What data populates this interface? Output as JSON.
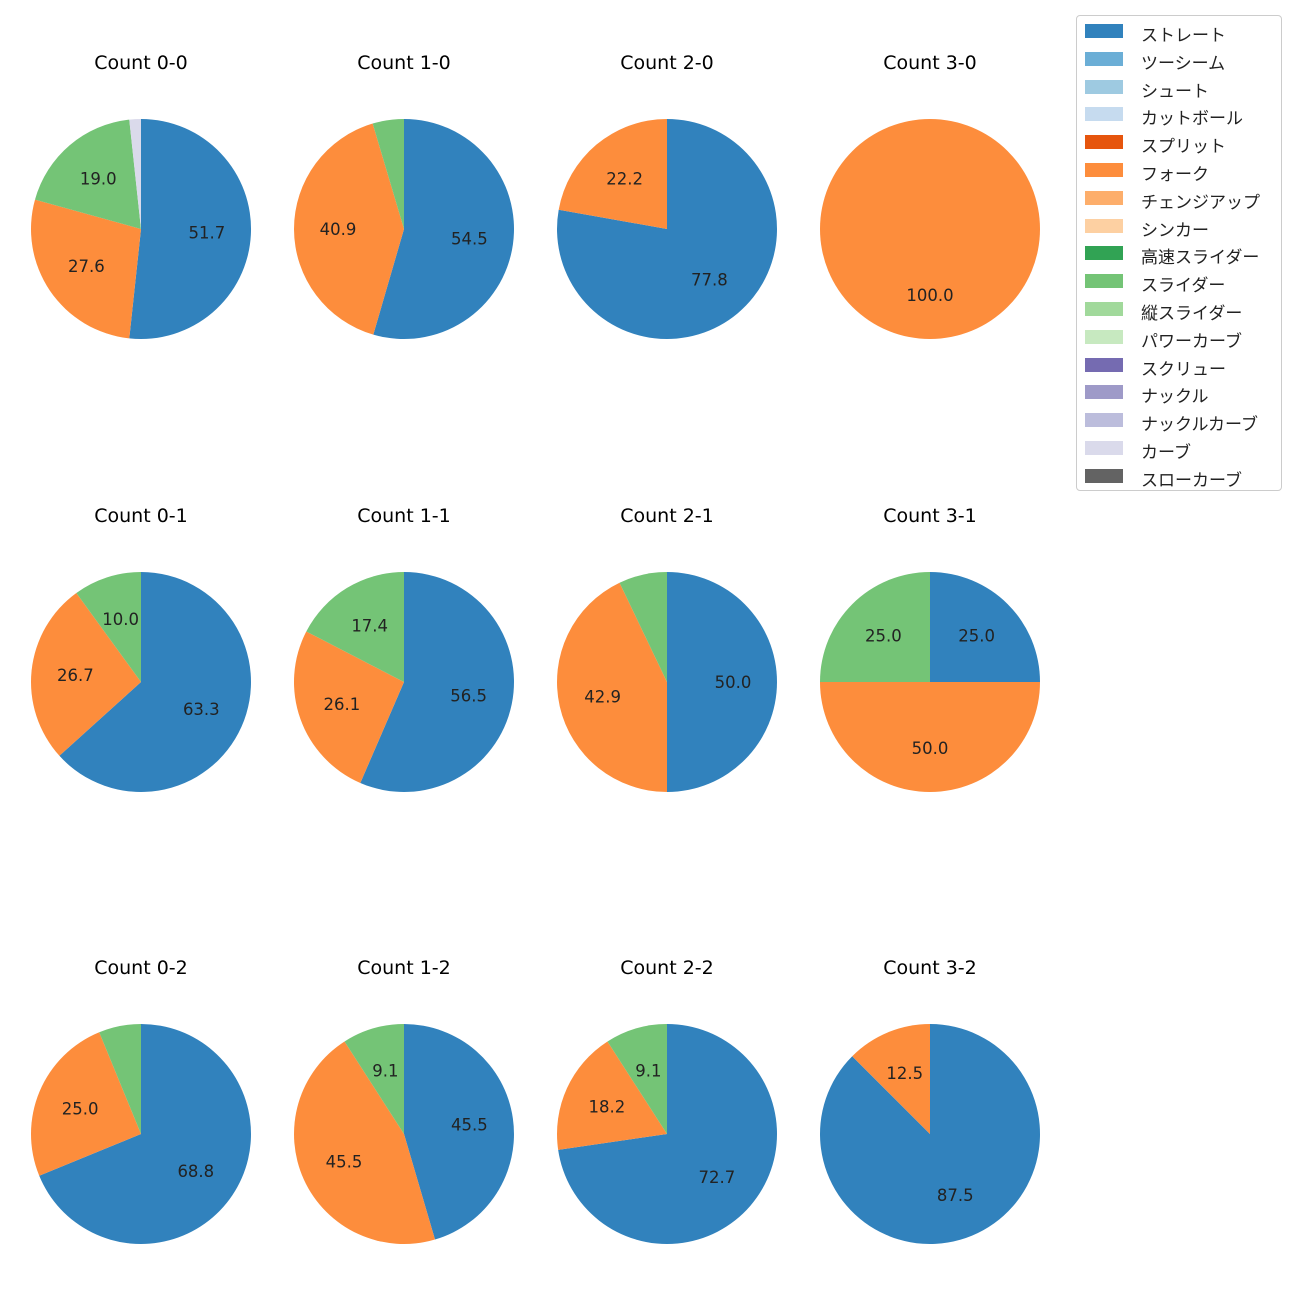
{
  "chart_data": {
    "type": "pie",
    "legend_position": "top-right",
    "legend": [
      {
        "label": "ストレート",
        "color": "#3182bd"
      },
      {
        "label": "ツーシーム",
        "color": "#6baed6"
      },
      {
        "label": "シュート",
        "color": "#9ecae1"
      },
      {
        "label": "カットボール",
        "color": "#c6dbef"
      },
      {
        "label": "スプリット",
        "color": "#e6550d"
      },
      {
        "label": "フォーク",
        "color": "#fd8d3c"
      },
      {
        "label": "チェンジアップ",
        "color": "#fdae6b"
      },
      {
        "label": "シンカー",
        "color": "#fdd0a2"
      },
      {
        "label": "高速スライダー",
        "color": "#31a354"
      },
      {
        "label": "スライダー",
        "color": "#74c476"
      },
      {
        "label": "縦スライダー",
        "color": "#a1d99b"
      },
      {
        "label": "パワーカーブ",
        "color": "#c7e9c0"
      },
      {
        "label": "スクリュー",
        "color": "#756bb1"
      },
      {
        "label": "ナックル",
        "color": "#9e9ac8"
      },
      {
        "label": "ナックルカーブ",
        "color": "#bcbddc"
      },
      {
        "label": "カーブ",
        "color": "#dadaeb"
      },
      {
        "label": "スローカーブ",
        "color": "#636363"
      }
    ],
    "pies": [
      {
        "title": "Count 0-0",
        "slices": [
          {
            "pitch": "ストレート",
            "value": 51.7,
            "label": "51.7"
          },
          {
            "pitch": "フォーク",
            "value": 27.6,
            "label": "27.6"
          },
          {
            "pitch": "スライダー",
            "value": 19.0,
            "label": "19.0"
          },
          {
            "pitch": "カーブ",
            "value": 1.7,
            "label": ""
          }
        ]
      },
      {
        "title": "Count 1-0",
        "slices": [
          {
            "pitch": "ストレート",
            "value": 54.5,
            "label": "54.5"
          },
          {
            "pitch": "フォーク",
            "value": 40.9,
            "label": "40.9"
          },
          {
            "pitch": "スライダー",
            "value": 4.6,
            "label": ""
          }
        ]
      },
      {
        "title": "Count 2-0",
        "slices": [
          {
            "pitch": "ストレート",
            "value": 77.8,
            "label": "77.8"
          },
          {
            "pitch": "フォーク",
            "value": 22.2,
            "label": "22.2"
          }
        ]
      },
      {
        "title": "Count 3-0",
        "slices": [
          {
            "pitch": "フォーク",
            "value": 100.0,
            "label": "100.0"
          }
        ]
      },
      {
        "title": "Count 0-1",
        "slices": [
          {
            "pitch": "ストレート",
            "value": 63.3,
            "label": "63.3"
          },
          {
            "pitch": "フォーク",
            "value": 26.7,
            "label": "26.7"
          },
          {
            "pitch": "スライダー",
            "value": 10.0,
            "label": "10.0"
          }
        ]
      },
      {
        "title": "Count 1-1",
        "slices": [
          {
            "pitch": "ストレート",
            "value": 56.5,
            "label": "56.5"
          },
          {
            "pitch": "フォーク",
            "value": 26.1,
            "label": "26.1"
          },
          {
            "pitch": "スライダー",
            "value": 17.4,
            "label": "17.4"
          }
        ]
      },
      {
        "title": "Count 2-1",
        "slices": [
          {
            "pitch": "ストレート",
            "value": 50.0,
            "label": "50.0"
          },
          {
            "pitch": "フォーク",
            "value": 42.9,
            "label": "42.9"
          },
          {
            "pitch": "スライダー",
            "value": 7.1,
            "label": ""
          }
        ]
      },
      {
        "title": "Count 3-1",
        "slices": [
          {
            "pitch": "ストレート",
            "value": 25.0,
            "label": "25.0"
          },
          {
            "pitch": "フォーク",
            "value": 50.0,
            "label": "50.0"
          },
          {
            "pitch": "スライダー",
            "value": 25.0,
            "label": "25.0"
          }
        ]
      },
      {
        "title": "Count 0-2",
        "slices": [
          {
            "pitch": "ストレート",
            "value": 68.8,
            "label": "68.8"
          },
          {
            "pitch": "フォーク",
            "value": 25.0,
            "label": "25.0"
          },
          {
            "pitch": "スライダー",
            "value": 6.2,
            "label": ""
          }
        ]
      },
      {
        "title": "Count 1-2",
        "slices": [
          {
            "pitch": "ストレート",
            "value": 45.5,
            "label": "45.5"
          },
          {
            "pitch": "フォーク",
            "value": 45.5,
            "label": "45.5"
          },
          {
            "pitch": "スライダー",
            "value": 9.1,
            "label": "9.1"
          }
        ]
      },
      {
        "title": "Count 2-2",
        "slices": [
          {
            "pitch": "ストレート",
            "value": 72.7,
            "label": "72.7"
          },
          {
            "pitch": "フォーク",
            "value": 18.2,
            "label": "18.2"
          },
          {
            "pitch": "スライダー",
            "value": 9.1,
            "label": "9.1"
          }
        ]
      },
      {
        "title": "Count 3-2",
        "slices": [
          {
            "pitch": "ストレート",
            "value": 87.5,
            "label": "87.5"
          },
          {
            "pitch": "フォーク",
            "value": 12.5,
            "label": "12.5"
          }
        ]
      }
    ]
  }
}
